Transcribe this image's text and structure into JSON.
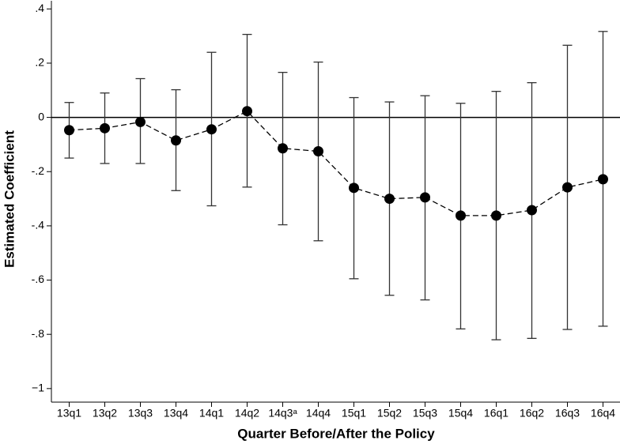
{
  "chart_data": {
    "type": "coefplot",
    "x_label": "Quarter Before/After the Policy",
    "y_label": "Estimated Coefficient",
    "categories": [
      "13q1",
      "13q2",
      "13q3",
      "13q4",
      "14q1",
      "14q2",
      "14q3ᵃ",
      "14q4",
      "15q1",
      "15q2",
      "15q3",
      "15q4",
      "16q1",
      "16q2",
      "16q3",
      "16q4"
    ],
    "values": [
      -0.047,
      -0.04,
      -0.017,
      -0.085,
      -0.044,
      0.023,
      -0.114,
      -0.125,
      -0.26,
      -0.3,
      -0.295,
      -0.362,
      -0.362,
      -0.342,
      -0.258,
      -0.228
    ],
    "lower": [
      -0.15,
      -0.17,
      -0.17,
      -0.27,
      -0.326,
      -0.257,
      -0.396,
      -0.455,
      -0.595,
      -0.656,
      -0.673,
      -0.78,
      -0.82,
      -0.815,
      -0.782,
      -0.77
    ],
    "upper": [
      0.055,
      0.09,
      0.143,
      0.102,
      0.24,
      0.306,
      0.166,
      0.204,
      0.073,
      0.057,
      0.08,
      0.052,
      0.096,
      0.128,
      0.266,
      0.317
    ],
    "color": "#000000",
    "ylim": [
      -1.05,
      0.43
    ],
    "yticks": [
      {
        "value": 0.4,
        "label": ".4"
      },
      {
        "value": 0.2,
        "label": ".2"
      },
      0,
      {
        "value": -0.2,
        "label": "-.2"
      },
      {
        "value": -0.4,
        "label": "-.4"
      },
      {
        "value": -0.6,
        "label": "-.6"
      },
      {
        "value": -0.8,
        "label": "-.8"
      },
      {
        "value": -1,
        "label": "−1"
      }
    ],
    "reference_line": 0
  }
}
